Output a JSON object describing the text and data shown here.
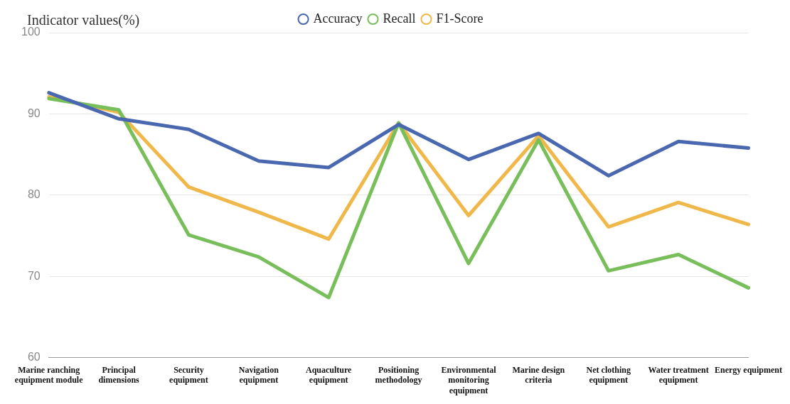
{
  "chart_data": {
    "type": "line",
    "ylabel": "Indicator values(%)",
    "categories": [
      "Marine ranching equipment module",
      "Principal dimensions",
      "Security equipment",
      "Navigation equipment",
      "Aquaculture equipment",
      "Positioning methodology",
      "Environmental monitoring equipment",
      "Marine design criteria",
      "Net clothing equipment",
      "Water treatment equipment",
      "Energy equipment"
    ],
    "series": [
      {
        "name": "Accuracy",
        "color": "#4a68b0",
        "values": [
          92.6,
          89.4,
          88.1,
          84.2,
          83.4,
          88.7,
          84.4,
          87.6,
          82.4,
          86.6,
          85.8
        ]
      },
      {
        "name": "Recall",
        "color": "#78bf5c",
        "values": [
          91.9,
          90.5,
          75.1,
          72.4,
          67.4,
          88.9,
          71.6,
          86.8,
          70.7,
          72.7,
          68.6
        ]
      },
      {
        "name": "F1-Score",
        "color": "#f0b84a",
        "values": [
          92.1,
          90.2,
          81.0,
          77.9,
          74.6,
          88.9,
          77.5,
          87.3,
          76.1,
          79.1,
          76.4
        ]
      }
    ],
    "ylim": [
      60,
      100
    ],
    "yticks": [
      60,
      70,
      80,
      90,
      100
    ],
    "grid": "y",
    "legend": "top",
    "marker": "none",
    "line_style": "solid"
  }
}
